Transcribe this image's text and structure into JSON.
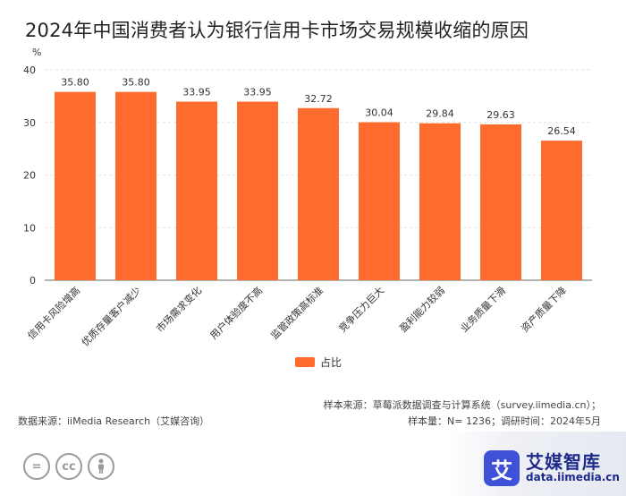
{
  "title": "2024年中国消费者认为银行信用卡市场交易规模收缩的原因",
  "chart_data": {
    "type": "bar",
    "title": "2024年中国消费者认为银行信用卡市场交易规模收缩的原因",
    "ylabel": "%",
    "xlabel": "",
    "ylim": [
      0,
      40
    ],
    "yticks": [
      0,
      10,
      20,
      30,
      40
    ],
    "grid": true,
    "categories": [
      "信用卡风险增高",
      "优质存量客户减少",
      "市场需求变化",
      "用户体验度不高",
      "监管政策高标准",
      "竞争压力巨大",
      "盈利能力较弱",
      "业务质量下滑",
      "资产质量下降"
    ],
    "series": [
      {
        "name": "占比",
        "values": [
          35.8,
          35.8,
          33.95,
          33.95,
          32.72,
          30.04,
          29.84,
          29.63,
          26.54
        ]
      }
    ],
    "value_labels": [
      "35.80",
      "35.80",
      "33.95",
      "33.95",
      "32.72",
      "30.04",
      "29.84",
      "29.63",
      "26.54"
    ],
    "legend": [
      "占比"
    ],
    "legend_position": "bottom-center"
  },
  "colors": {
    "bar": "#ff6b2c",
    "grid": "#e4e4e4",
    "axis": "#666666"
  },
  "source": {
    "sample_source": "样本来源：草莓派数据调查与计算系统（survey.iimedia.cn）；",
    "sample_size": "样本量：N= 1236；调研时间：2024年5月",
    "data_source": "数据来源：iiMedia Research（艾媒咨询）"
  },
  "license_icons": [
    "=",
    "cc",
    "person"
  ],
  "brand": {
    "logo_glyph": "艾",
    "name": "艾媒智库",
    "url": "data.iimedia.cn"
  }
}
